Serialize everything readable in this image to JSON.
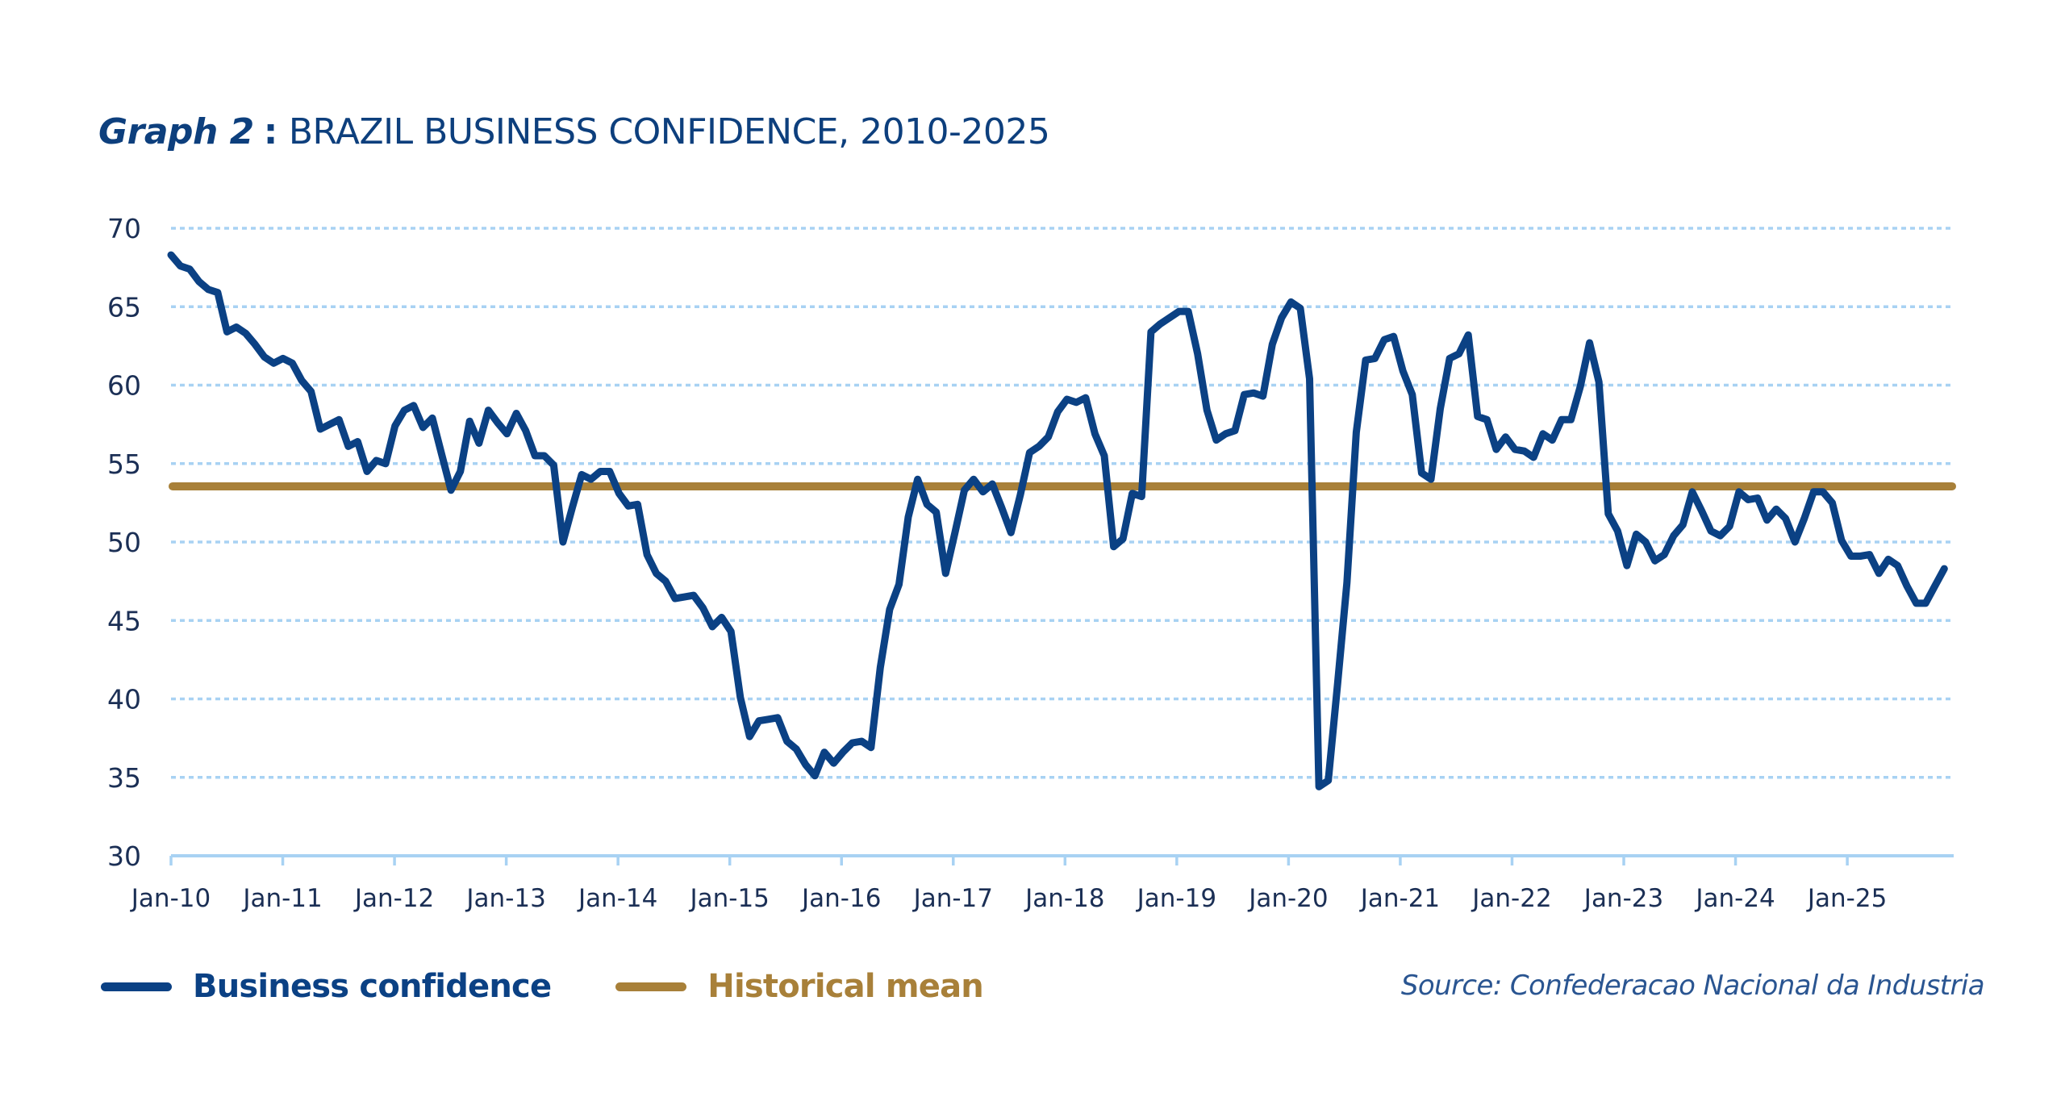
{
  "title": {
    "prefix": "Graph 2",
    "separator": ":",
    "main": "BRAZIL BUSINESS CONFIDENCE, 2010-2025"
  },
  "colors": {
    "business_confidence": "#0b4184",
    "historical_mean": "#a88039",
    "gridline": "#a8d2f3",
    "axis": "#a8d2f3",
    "tick_label": "#1b2f55",
    "title": "#0d3f7d",
    "source": "#2a5591"
  },
  "legend": {
    "items": [
      {
        "label": "Business confidence",
        "color": "#0b4184"
      },
      {
        "label": "Historical mean",
        "color": "#a88039"
      }
    ]
  },
  "source": "Source: Confederacao Nacional da Industria",
  "chart_data": {
    "type": "line",
    "title": "Graph 2 : BRAZIL BUSINESS CONFIDENCE, 2010-2025",
    "xlabel": "",
    "ylabel": "",
    "ylim": [
      30,
      70
    ],
    "yticks": [
      30,
      35,
      40,
      45,
      50,
      55,
      60,
      65,
      70
    ],
    "grid": "horizontal-dotted",
    "legend_position": "bottom-left",
    "x_start": "Jan-10",
    "x_frequency": "monthly",
    "x_range_months": [
      0,
      191
    ],
    "xtick_labels": [
      "Jan-10",
      "Jan-11",
      "Jan-12",
      "Jan-13",
      "Jan-14",
      "Jan-15",
      "Jan-16",
      "Jan-17",
      "Jan-18",
      "Jan-19",
      "Jan-20",
      "Jan-21",
      "Jan-22",
      "Jan-23",
      "Jan-24",
      "Jan-25"
    ],
    "series": [
      {
        "name": "Business confidence",
        "values": [
          68.3,
          67.6,
          67.4,
          66.6,
          66.1,
          65.9,
          63.4,
          63.7,
          63.3,
          62.6,
          61.8,
          61.4,
          61.7,
          61.4,
          60.3,
          59.6,
          57.2,
          57.5,
          57.8,
          56.1,
          56.4,
          54.5,
          55.2,
          55.0,
          57.4,
          58.4,
          58.7,
          57.3,
          57.9,
          55.6,
          53.3,
          54.5,
          57.7,
          56.3,
          58.4,
          57.6,
          56.9,
          58.2,
          57.1,
          55.5,
          55.5,
          54.9,
          50.0,
          52.2,
          54.3,
          54.0,
          54.5,
          54.5,
          53.1,
          52.3,
          52.4,
          49.2,
          48.0,
          47.5,
          46.4,
          46.5,
          46.6,
          45.8,
          44.6,
          45.2,
          44.3,
          40.1,
          37.6,
          38.6,
          38.7,
          38.8,
          37.3,
          36.8,
          35.8,
          35.1,
          36.6,
          35.9,
          36.6,
          37.2,
          37.3,
          36.9,
          42.0,
          45.7,
          47.3,
          51.6,
          54.0,
          52.4,
          51.9,
          48.0,
          50.6,
          53.3,
          54.0,
          53.2,
          53.7,
          52.2,
          50.6,
          53.0,
          55.7,
          56.1,
          56.7,
          58.3,
          59.1,
          58.9,
          59.2,
          56.9,
          55.5,
          49.7,
          50.2,
          53.1,
          52.9,
          63.4,
          63.9,
          64.3,
          64.7,
          64.7,
          62.0,
          58.4,
          56.5,
          56.9,
          57.1,
          59.4,
          59.5,
          59.3,
          62.6,
          64.3,
          65.3,
          64.9,
          60.4,
          34.4,
          34.8,
          41.0,
          47.4,
          57.0,
          61.6,
          61.7,
          62.9,
          63.1,
          60.9,
          59.4,
          54.4,
          54.0,
          58.5,
          61.7,
          62.0,
          63.2,
          58.0,
          57.8,
          55.9,
          56.7,
          55.9,
          55.8,
          55.4,
          56.9,
          56.5,
          57.8,
          57.8,
          59.9,
          62.7,
          60.2,
          51.8,
          50.7,
          48.5,
          50.5,
          50.0,
          48.8,
          49.2,
          50.4,
          51.1,
          53.2,
          52.0,
          50.7,
          50.4,
          51.0,
          53.2,
          52.7,
          52.8,
          51.4,
          52.1,
          51.5,
          50.0,
          51.5,
          53.2,
          53.2,
          52.5,
          50.1,
          49.1,
          49.1,
          49.2,
          48.0,
          48.9,
          48.5,
          47.2,
          46.1,
          46.1,
          47.2,
          48.3
        ]
      },
      {
        "name": "Historical mean",
        "constant": 53.55
      }
    ]
  }
}
